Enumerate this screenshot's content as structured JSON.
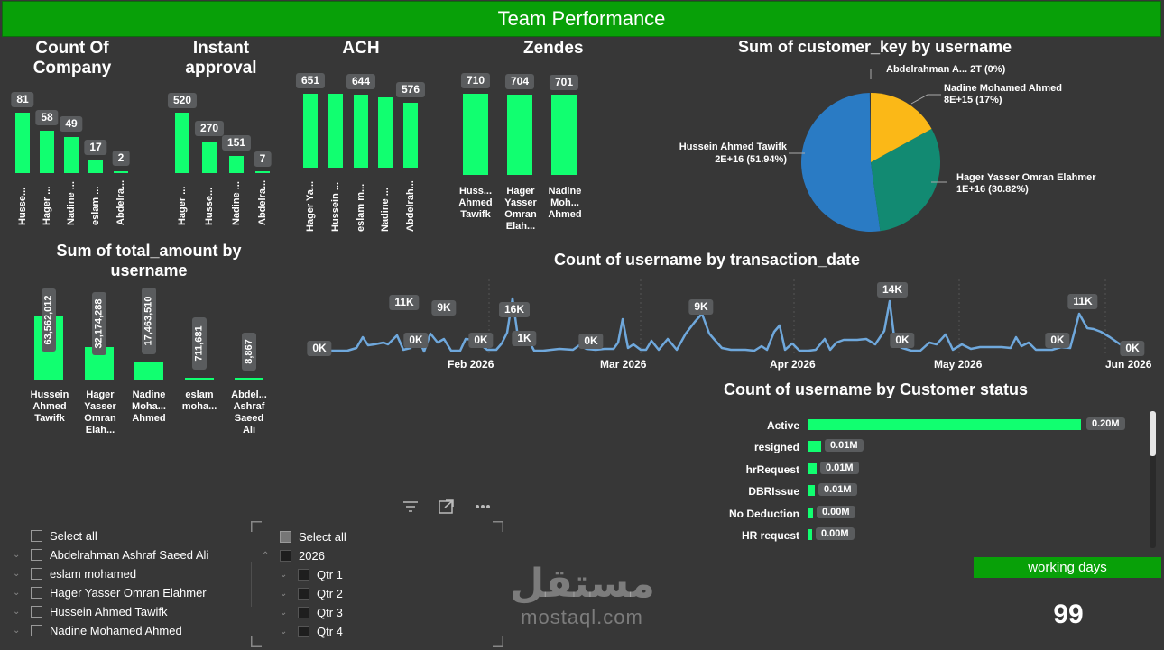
{
  "header": {
    "title": "Team Performance"
  },
  "count_of_company": {
    "title_line1": "Count Of",
    "title_line2": "Company",
    "bars": [
      {
        "label": "Husse...",
        "value": "81"
      },
      {
        "label": "Hager ...",
        "value": "58"
      },
      {
        "label": "Nadine ...",
        "value": "49"
      },
      {
        "label": "eslam ...",
        "value": "17"
      },
      {
        "label": "Abdelra...",
        "value": "2"
      }
    ]
  },
  "instant_approval": {
    "title_line1": "Instant",
    "title_line2": "approval",
    "bars": [
      {
        "label": "Hager ...",
        "value": "520"
      },
      {
        "label": "Husse...",
        "value": "270"
      },
      {
        "label": "Nadine ...",
        "value": "151"
      },
      {
        "label": "Abdelra...",
        "value": "7"
      }
    ]
  },
  "ach": {
    "title": "ACH",
    "bars": [
      {
        "label": "Hager Ya...",
        "value": "651"
      },
      {
        "label": "Hussein ...",
        "value": ""
      },
      {
        "label": "eslam m...",
        "value": "644"
      },
      {
        "label": "Nadine ...",
        "value": ""
      },
      {
        "label": "Abdelrah...",
        "value": "576"
      }
    ]
  },
  "zendesk": {
    "title": "Zendes",
    "bars": [
      {
        "label_lines": [
          "Huss...",
          "Ahmed",
          "Tawifk"
        ],
        "value": "710"
      },
      {
        "label_lines": [
          "Hager",
          "Yasser",
          "Omran",
          "Elah..."
        ],
        "value": "704"
      },
      {
        "label_lines": [
          "Nadine",
          "Moh...",
          "Ahmed"
        ],
        "value": "701"
      }
    ]
  },
  "pie": {
    "title": "Sum of customer_key by username",
    "colors": {
      "hussein": "#2a7bc4",
      "hager": "#128a72",
      "nadine": "#fbb817",
      "abdelrahman": "#333333"
    },
    "labels": {
      "abdelrahman": "Abdelrahman A... 2T (0%)",
      "nadine_name": "Nadine Mohamed Ahmed",
      "nadine_val": "8E+15 (17%)",
      "hussein_name": "Hussein Ahmed Tawifk",
      "hussein_val": "2E+16 (51.94%)",
      "hager_name": "Hager Yasser Omran Elahmer",
      "hager_val": "1E+16 (30.82%)"
    },
    "slices": [
      {
        "name": "Hussein Ahmed Tawifk",
        "percent": 51.94
      },
      {
        "name": "Hager Yasser Omran Elahmer",
        "percent": 30.82
      },
      {
        "name": "Nadine Mohamed Ahmed",
        "percent": 17
      },
      {
        "name": "Abdelrahman A...",
        "percent": 0
      }
    ]
  },
  "total_amount": {
    "title_line1": "Sum of total_amount by",
    "title_line2": "username",
    "bars": [
      {
        "label_lines": [
          "Hussein",
          "Ahmed",
          "Tawifk"
        ],
        "value": "63,562,012"
      },
      {
        "label_lines": [
          "Hager",
          "Yasser",
          "Omran",
          "Elah..."
        ],
        "value": "32,174,288"
      },
      {
        "label_lines": [
          "Nadine",
          "Moha...",
          "Ahmed"
        ],
        "value": "17,463,510"
      },
      {
        "label_lines": [
          "eslam",
          "moha..."
        ],
        "value": "711,681"
      },
      {
        "label_lines": [
          "Abdel...",
          "Ashraf",
          "Saeed",
          "Ali"
        ],
        "value": "8,867"
      }
    ]
  },
  "line_chart": {
    "title": "Count of username by transaction_date",
    "labels": [
      "0K",
      "11K",
      "9K",
      "0K",
      "0K",
      "16K",
      "1K",
      "0K",
      "9K",
      "14K",
      "0K",
      "0K",
      "11K",
      "0K"
    ],
    "x_ticks": [
      "Feb 2026",
      "Mar 2026",
      "Apr 2026",
      "May 2026",
      "Jun 2026"
    ]
  },
  "status_chart": {
    "title": "Count of username by Customer status",
    "bars": [
      {
        "label": "Active",
        "value": "0.20M"
      },
      {
        "label": "resigned",
        "value": "0.01M"
      },
      {
        "label": "hrRequest",
        "value": "0.01M"
      },
      {
        "label": "DBRIssue",
        "value": "0.01M"
      },
      {
        "label": "No Deduction",
        "value": "0.00M"
      },
      {
        "label": "HR request",
        "value": "0.00M"
      }
    ]
  },
  "working_days": {
    "label": "working days",
    "value": "99"
  },
  "user_slicer": {
    "select_all": "Select all",
    "items": [
      "Abdelrahman Ashraf Saeed Ali",
      "eslam mohamed",
      "Hager Yasser Omran Elahmer",
      "Hussein Ahmed Tawifk",
      "Nadine Mohamed Ahmed"
    ]
  },
  "date_slicer": {
    "select_all": "Select all",
    "year": "2026",
    "quarters": [
      "Qtr 1",
      "Qtr 2",
      "Qtr 3",
      "Qtr 4"
    ]
  },
  "watermark": {
    "arabic": "مستقل",
    "latin": "mostaql.com"
  }
}
